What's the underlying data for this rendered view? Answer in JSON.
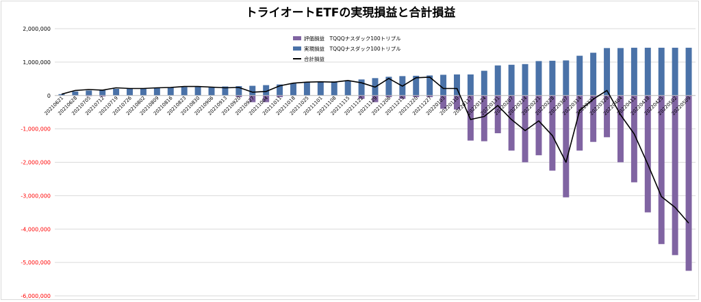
{
  "chart_data": {
    "type": "bar",
    "title": "トライオートETFの実現損益と合計損益",
    "ylim": [
      -6000000,
      2000000
    ],
    "y_ticks": [
      {
        "value": 2000000,
        "label": "2,000,000"
      },
      {
        "value": 1000000,
        "label": "1,000,000"
      },
      {
        "value": 0,
        "label": "0"
      },
      {
        "value": -1000000,
        "label": "-1,000,000"
      },
      {
        "value": -2000000,
        "label": "-2,000,000"
      },
      {
        "value": -3000000,
        "label": "-3,000,000"
      },
      {
        "value": -4000000,
        "label": "-4,000,000"
      },
      {
        "value": -5000000,
        "label": "-5,000,000"
      },
      {
        "value": -6000000,
        "label": "-6,000,000"
      }
    ],
    "grid": true,
    "legend_position": "top-center",
    "categories": [
      "20210621",
      "20210628",
      "20210705",
      "20210712",
      "20210719",
      "20210726",
      "20210802",
      "20210809",
      "20210816",
      "20210823",
      "20210830",
      "20210906",
      "20210913",
      "20210920",
      "20210927",
      "20211004",
      "20211011",
      "20211018",
      "20211025",
      "20211101",
      "20211108",
      "20211115",
      "20211122",
      "20211129",
      "20211206",
      "20211213",
      "20211220",
      "20211227",
      "20220103",
      "20220110",
      "20220117",
      "20220124",
      "20220131",
      "20220207",
      "20220214",
      "20220221",
      "20220228",
      "20220307",
      "20220314",
      "20220321",
      "20220328",
      "20220404",
      "20220411",
      "20220418",
      "20220425",
      "20220502",
      "20220509"
    ],
    "xtick_labels": [
      "20210621",
      "20210628",
      "20210705",
      "20210712",
      "20210719",
      "20210726",
      "20210802",
      "20210809",
      "20210816",
      "20210823",
      "20210830",
      "20210906",
      "20210913",
      "20210920",
      "20210927",
      "20211004",
      "20211011",
      "20211018",
      "20211025",
      "20211101",
      "20211108",
      "20211115",
      "20211122",
      "20211129",
      "20211206",
      "20211213",
      "20211220",
      "20211227",
      "20220103",
      "20220110",
      "20220117",
      "20220124",
      "20220131",
      "20220207",
      "20220214",
      "20220221",
      "20220228",
      "20220307",
      "20220314",
      "20220321",
      "20220328",
      "20220404",
      "20220411",
      "20220418",
      "20220425",
      "20220502",
      "20220509"
    ],
    "series": [
      {
        "name": "評価損益　TQQQナスダック100トリプル",
        "kind": "bar",
        "color": "#8064a2",
        "values": [
          20000,
          -10000,
          -20000,
          -30000,
          0,
          0,
          0,
          0,
          0,
          0,
          0,
          0,
          0,
          -50000,
          -200000,
          -200000,
          -50000,
          0,
          0,
          0,
          0,
          0,
          -100000,
          -200000,
          -50000,
          -100000,
          -50000,
          -50000,
          -400000,
          -420000,
          -1350000,
          -1370000,
          -1130000,
          -1650000,
          -2000000,
          -1790000,
          -2250000,
          -3050000,
          -1650000,
          -1390000,
          -1250000,
          -2000000,
          -2600000,
          -3500000,
          -4450000,
          -4780000,
          -5250000
        ]
      },
      {
        "name": "実現損益　TQQQナスダック100トリプル",
        "kind": "bar",
        "color": "#4a72a8",
        "values": [
          40000,
          120000,
          150000,
          160000,
          200000,
          210000,
          220000,
          230000,
          240000,
          250000,
          255000,
          260000,
          270000,
          280000,
          290000,
          310000,
          330000,
          360000,
          390000,
          420000,
          420000,
          430000,
          480000,
          520000,
          560000,
          580000,
          590000,
          600000,
          620000,
          630000,
          630000,
          740000,
          900000,
          920000,
          940000,
          1030000,
          1040000,
          1050000,
          1190000,
          1280000,
          1420000,
          1420000,
          1430000,
          1430000,
          1430000,
          1430000,
          1430000
        ]
      },
      {
        "name": "合計損益",
        "kind": "line",
        "color": "#000000",
        "values": [
          40000,
          150000,
          180000,
          160000,
          230000,
          210000,
          210000,
          230000,
          240000,
          270000,
          270000,
          250000,
          230000,
          240000,
          100000,
          120000,
          290000,
          370000,
          400000,
          410000,
          400000,
          450000,
          380000,
          250000,
          510000,
          280000,
          530000,
          550000,
          210000,
          210000,
          -720000,
          -630000,
          -300000,
          -720000,
          -1050000,
          -760000,
          -1200000,
          -2000000,
          -450000,
          -110000,
          150000,
          -580000,
          -1150000,
          -2060000,
          -3030000,
          -3350000,
          -3820000
        ]
      }
    ]
  }
}
